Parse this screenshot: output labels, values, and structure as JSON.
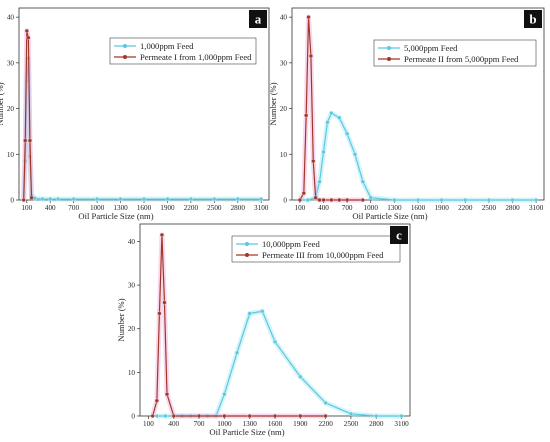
{
  "chart_data": [
    {
      "type": "line",
      "panel_label": "a",
      "xlabel": "Oil Particle Size (nm)",
      "ylabel": "Number (%)",
      "xticks": [
        "100",
        "400",
        "700",
        "1000",
        "1300",
        "1600",
        "1900",
        "2200",
        "2500",
        "2800",
        "3100"
      ],
      "xlim": [
        0,
        3200
      ],
      "yticks": [
        "0",
        "10",
        "20",
        "30",
        "40"
      ],
      "ylim": [
        0,
        42
      ],
      "legend_placement": "top-center",
      "series": [
        {
          "name": "1,000ppm Feed",
          "color": "#5bc8e0",
          "x": [
            60,
            80,
            100,
            120,
            140,
            160,
            200,
            300,
            400,
            500,
            700,
            1000,
            1300,
            1600,
            1900,
            2200,
            2500,
            2800,
            3100
          ],
          "y": [
            0,
            8.5,
            26,
            31,
            9.5,
            1,
            0.4,
            0.2,
            0.2,
            0.2,
            0.2,
            0.2,
            0.2,
            0.2,
            0.2,
            0.2,
            0.2,
            0.2,
            0.2
          ]
        },
        {
          "name": "Permeate I from 1,000ppm Feed",
          "color": "#a0382a",
          "x": [
            60,
            80,
            100,
            120,
            140,
            160
          ],
          "y": [
            0,
            13,
            37,
            35.5,
            13,
            0.5
          ]
        }
      ]
    },
    {
      "type": "line",
      "panel_label": "b",
      "xlabel": "Oil Particle Size (nm)",
      "ylabel": "Number (%)",
      "xticks": [
        "100",
        "400",
        "700",
        "1000",
        "1300",
        "1600",
        "1900",
        "2200",
        "2500",
        "2800",
        "3100"
      ],
      "xlim": [
        0,
        3200
      ],
      "yticks": [
        "0",
        "10",
        "20",
        "30",
        "40"
      ],
      "ylim": [
        0,
        42
      ],
      "legend_placement": "top-right",
      "series": [
        {
          "name": "5,000ppm Feed",
          "color": "#5bc8e0",
          "x": [
            100,
            200,
            300,
            350,
            400,
            450,
            500,
            600,
            700,
            800,
            900,
            1000,
            1300,
            1600,
            1900,
            2200,
            2500,
            2800,
            3100
          ],
          "y": [
            0,
            0,
            0.5,
            4,
            10.5,
            17,
            19,
            18,
            14.5,
            10,
            4,
            0.5,
            0,
            0,
            0,
            0,
            0,
            0,
            0
          ]
        },
        {
          "name": "Permeate II from 5,000ppm Feed",
          "color": "#a0382a",
          "x": [
            100,
            150,
            180,
            210,
            240,
            270,
            300,
            350,
            400,
            500,
            600,
            700,
            900
          ],
          "y": [
            0,
            1.5,
            18.5,
            40,
            31.5,
            8.5,
            0.5,
            0,
            0,
            0,
            0,
            0,
            0
          ]
        }
      ]
    },
    {
      "type": "line",
      "panel_label": "c",
      "xlabel": "Oil Particle Size (nm)",
      "ylabel": "Number (%)",
      "xticks": [
        "100",
        "400",
        "700",
        "1000",
        "1300",
        "1600",
        "1900",
        "2200",
        "2500",
        "2800",
        "3100"
      ],
      "xlim": [
        0,
        3200
      ],
      "yticks": [
        "0",
        "10",
        "20",
        "30",
        "40"
      ],
      "ylim": [
        0,
        44
      ],
      "legend_placement": "top-center",
      "series": [
        {
          "name": "10,000ppm Feed",
          "color": "#5bc8e0",
          "x": [
            200,
            300,
            400,
            500,
            600,
            700,
            800,
            900,
            1000,
            1150,
            1300,
            1450,
            1600,
            1900,
            2200,
            2500,
            2800,
            3100
          ],
          "y": [
            0,
            0,
            0,
            0,
            0,
            0,
            0,
            0,
            5,
            14.5,
            23.5,
            24,
            17,
            9,
            3,
            0.5,
            0,
            0
          ]
        },
        {
          "name": "Permeate III from 10,000ppm Feed",
          "color": "#a0382a",
          "x": [
            150,
            200,
            230,
            260,
            290,
            320,
            400,
            700,
            1000,
            1300,
            1600,
            1900,
            2200
          ],
          "y": [
            0,
            3.5,
            23.5,
            41.5,
            26,
            5,
            0,
            0,
            0,
            0,
            0,
            0,
            0
          ]
        }
      ]
    }
  ]
}
